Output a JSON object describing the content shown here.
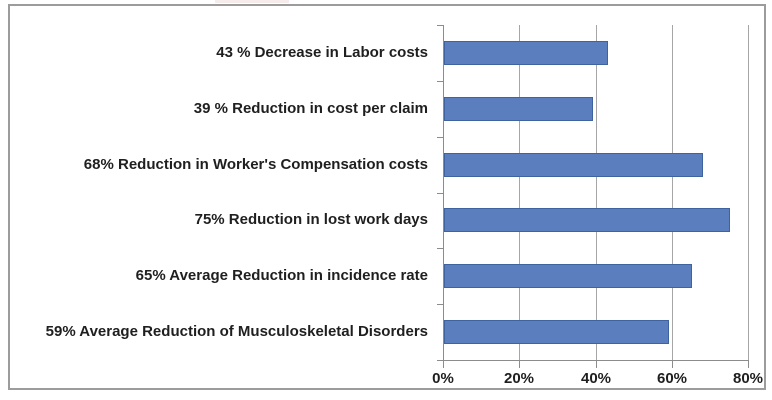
{
  "chart_data": {
    "type": "bar",
    "orientation": "horizontal",
    "title": "",
    "categories": [
      "43 % Decrease in Labor costs",
      "39 % Reduction in cost per claim",
      "68% Reduction in Worker's Compensation costs",
      "75% Reduction in lost work days",
      "65% Average Reduction in incidence rate",
      "59% Average Reduction of Musculoskeletal Disorders"
    ],
    "values": [
      43,
      39,
      68,
      75,
      65,
      59
    ],
    "xlabel": "",
    "ylabel": "",
    "x_axis": {
      "min": 0,
      "max": 80,
      "step": 20,
      "tick_labels": [
        "0%",
        "20%",
        "40%",
        "60%",
        "80%"
      ]
    },
    "grid": "vertical",
    "legend": "none",
    "colors": {
      "bar_fill": "#5b7ebe",
      "bar_border": "#3f639f",
      "gridline": "#a6a6a6",
      "axis": "#8c8c8c",
      "text": "#1f1f1f",
      "frame_border": "#9c9c9c",
      "background": "#ffffff"
    }
  },
  "decorations": {
    "top_edge_artifact_color": "#f6ecec"
  }
}
